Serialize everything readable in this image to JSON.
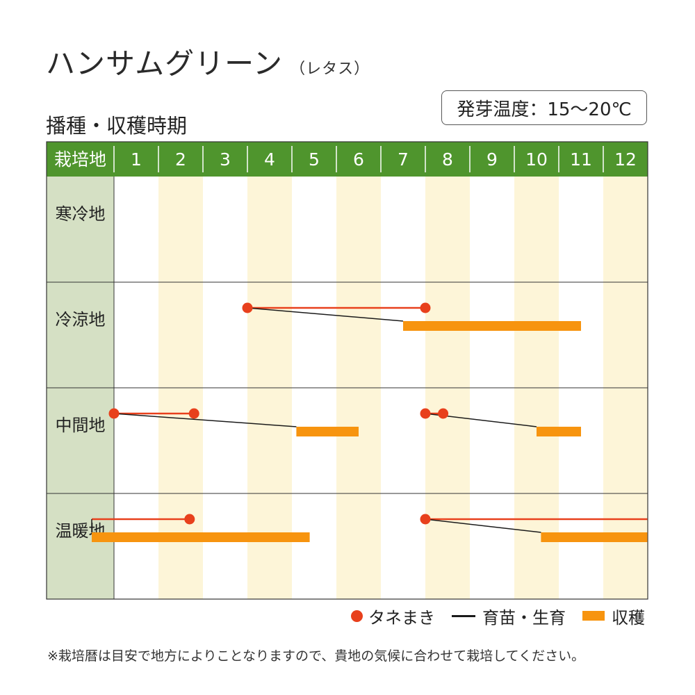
{
  "header": {
    "title": "ハンサムグリーン",
    "subtitle": "（レタス）",
    "germination_temp": "発芽温度：15～20℃",
    "section_title": "播種・収穫時期"
  },
  "legend": {
    "sowing": "タネまき",
    "raising": "育苗・生育",
    "harvest": "収穫"
  },
  "note": "※栽培暦は目安で地方によりことなりますので、貴地の気候に合わせて栽培してください。",
  "colors": {
    "header_green": "#4f952d",
    "region_bg": "#d5e0c4",
    "stripe": "#fdf5d8",
    "sowing": "#e8401c",
    "raising": "#1a1a1a",
    "harvest": "#f7940f",
    "grid": "#333333"
  },
  "chart_data": {
    "type": "table",
    "header_label": "栽培地",
    "months": [
      "1",
      "2",
      "3",
      "4",
      "5",
      "6",
      "7",
      "8",
      "9",
      "10",
      "11",
      "12"
    ],
    "rows": [
      {
        "region": "寒冷地",
        "schedules": []
      },
      {
        "region": "冷涼地",
        "schedules": [
          {
            "sow_start": 4.0,
            "sow_end": 8.0,
            "harvest_start": 7.5,
            "harvest_end": 11.5
          }
        ]
      },
      {
        "region": "中間地",
        "schedules": [
          {
            "sow_start": 1.0,
            "sow_end": 2.8,
            "harvest_start": 5.1,
            "harvest_end": 6.5
          },
          {
            "sow_start": 8.0,
            "sow_end": 8.4,
            "harvest_start": 10.5,
            "harvest_end": 11.5
          }
        ]
      },
      {
        "region": "温暖地",
        "schedules": [
          {
            "sow_start": 0.5,
            "sow_end": 2.7,
            "harvest_start": 0.5,
            "harvest_end": 5.4,
            "sow_from_prev_year": true
          },
          {
            "sow_start": 8.0,
            "sow_end": 12.99,
            "harvest_start": 10.6,
            "harvest_end": 12.99,
            "continues_next_year": true
          }
        ]
      }
    ]
  }
}
